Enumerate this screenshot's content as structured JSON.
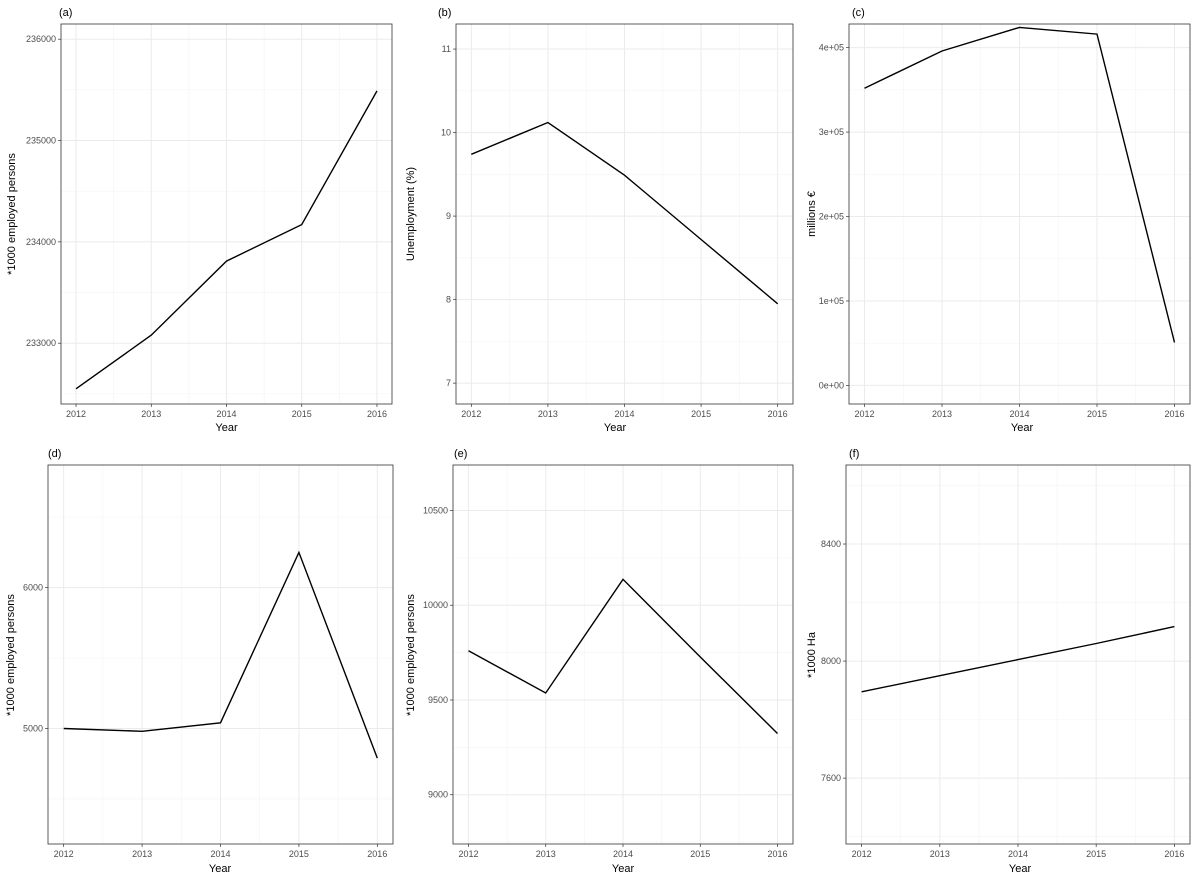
{
  "chart_data": [
    {
      "type": "line",
      "tag": "(a)",
      "xlabel": "Year",
      "ylabel": "*1000 employed persons",
      "x": [
        2012,
        2013,
        2014,
        2015,
        2016
      ],
      "values": [
        232550,
        233080,
        233810,
        234170,
        235490
      ],
      "xlim": [
        2011.8,
        2016.2
      ],
      "ylim": [
        232400,
        236150
      ],
      "xticks": [
        2012,
        2013,
        2014,
        2015,
        2016
      ],
      "yticks": [
        233000,
        234000,
        235000,
        236000
      ],
      "ytick_labels": [
        "233000",
        "234000",
        "235000",
        "236000"
      ],
      "grid": true
    },
    {
      "type": "line",
      "tag": "(b)",
      "xlabel": "Year",
      "ylabel": "Unemployment (%)",
      "x": [
        2012,
        2013,
        2014,
        2015,
        2016
      ],
      "values": [
        9.74,
        10.12,
        9.49,
        8.72,
        7.95
      ],
      "xlim": [
        2011.8,
        2016.2
      ],
      "ylim": [
        6.75,
        11.3
      ],
      "xticks": [
        2012,
        2013,
        2014,
        2015,
        2016
      ],
      "yticks": [
        7,
        8,
        9,
        10,
        11
      ],
      "ytick_labels": [
        "7",
        "8",
        "9",
        "10",
        "11"
      ],
      "grid": true
    },
    {
      "type": "line",
      "tag": "(c)",
      "xlabel": "Year",
      "ylabel": "millions €",
      "x": [
        2012,
        2013,
        2014,
        2015,
        2016
      ],
      "values": [
        352000,
        396000,
        424000,
        416000,
        51000
      ],
      "xlim": [
        2011.8,
        2016.2
      ],
      "ylim": [
        -22000,
        428000
      ],
      "xticks": [
        2012,
        2013,
        2014,
        2015,
        2016
      ],
      "yticks": [
        0,
        100000,
        200000,
        300000,
        400000
      ],
      "ytick_labels": [
        "0e+00",
        "1e+05",
        "2e+05",
        "3e+05",
        "4e+05"
      ],
      "grid": true
    },
    {
      "type": "line",
      "tag": "(d)",
      "xlabel": "Year",
      "ylabel": "*1000 employed persons",
      "x": [
        2012,
        2013,
        2014,
        2015,
        2016
      ],
      "values": [
        5000,
        4980,
        5040,
        6250,
        4790
      ],
      "xlim": [
        2011.8,
        2016.2
      ],
      "ylim": [
        4180,
        6870
      ],
      "xticks": [
        2012,
        2013,
        2014,
        2015,
        2016
      ],
      "yticks": [
        5000,
        6000
      ],
      "ytick_labels": [
        "5000",
        "6000"
      ],
      "grid": true
    },
    {
      "type": "line",
      "tag": "(e)",
      "xlabel": "Year",
      "ylabel": "*1000 employed persons",
      "x": [
        2012,
        2013,
        2014,
        2015,
        2016
      ],
      "values": [
        9760,
        9537,
        10137,
        9727,
        9323
      ],
      "xlim": [
        2011.8,
        2016.2
      ],
      "ylim": [
        8740,
        10740
      ],
      "xticks": [
        2012,
        2013,
        2014,
        2015,
        2016
      ],
      "yticks": [
        9000,
        9500,
        10000,
        10500
      ],
      "ytick_labels": [
        "9000",
        "9500",
        "10000",
        "10500"
      ],
      "grid": true
    },
    {
      "type": "line",
      "tag": "(f)",
      "xlabel": "Year",
      "ylabel": "*1000 Ha",
      "x": [
        2012,
        2013,
        2014,
        2015,
        2016
      ],
      "values": [
        7895,
        7950,
        8005,
        8060,
        8118
      ],
      "xlim": [
        2011.8,
        2016.2
      ],
      "ylim": [
        7375,
        8670
      ],
      "xticks": [
        2012,
        2013,
        2014,
        2015,
        2016
      ],
      "yticks": [
        7600,
        8000,
        8400
      ],
      "ytick_labels": [
        "7600",
        "8000",
        "8400"
      ],
      "grid": true
    }
  ]
}
